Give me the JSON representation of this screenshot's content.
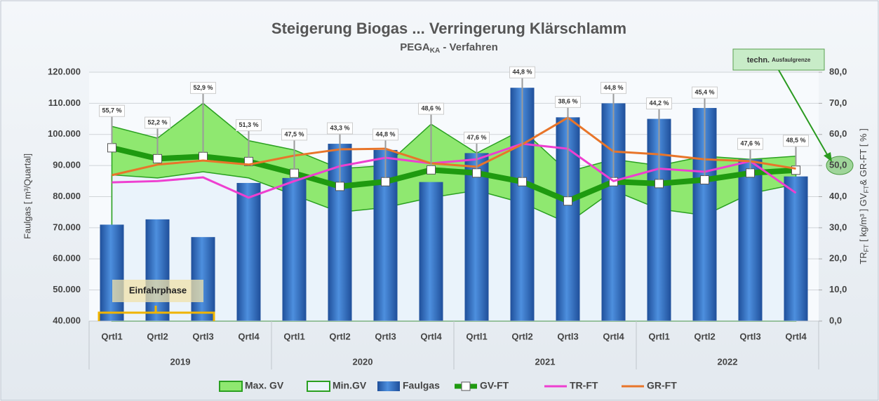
{
  "chart_data": {
    "type": "combo",
    "title": "Steigerung Biogas ... Verringerung Klärschlamm",
    "subtitle": [
      "PEGA",
      "KA",
      " - Verfahren"
    ],
    "ylabel": "Faulgas [ m³/Quartal]",
    "y2label": [
      "TR",
      "FT",
      " [ kg/m³ ] GV",
      "FT",
      "& GR-FT [ % ]"
    ],
    "categories": [
      "Qrtl1",
      "Qrtl2",
      "Qrtl3",
      "Qrtl4",
      "Qrtl1",
      "Qrtl2",
      "Qrtl3",
      "Qrtl4",
      "Qrtl1",
      "Qrtl2",
      "Qrtl3",
      "Qrtl4",
      "Qrtl1",
      "Qrtl2",
      "Qrtl3",
      "Qrtl4"
    ],
    "years": [
      "2019",
      "2020",
      "2021",
      "2022"
    ],
    "ylim": [
      40000,
      120000
    ],
    "yticks": [
      {
        "value": 40000,
        "label": "40.000"
      },
      {
        "value": 50000,
        "label": "50.000"
      },
      {
        "value": 60000,
        "label": "60.000"
      },
      {
        "value": 70000,
        "label": "70.000"
      },
      {
        "value": 80000,
        "label": "80.000"
      },
      {
        "value": 90000,
        "label": "90.000"
      },
      {
        "value": 100000,
        "label": "100.000"
      },
      {
        "value": 110000,
        "label": "110.000"
      },
      {
        "value": 120000,
        "label": "120.000"
      }
    ],
    "y2lim": [
      0,
      80
    ],
    "y2ticks": [
      {
        "value": 0,
        "label": "0,0"
      },
      {
        "value": 10,
        "label": "10,0"
      },
      {
        "value": 20,
        "label": "20,0"
      },
      {
        "value": 30,
        "label": "30,0"
      },
      {
        "value": 40,
        "label": "40,0"
      },
      {
        "value": 50,
        "label": "50,0"
      },
      {
        "value": 60,
        "label": "60,0"
      },
      {
        "value": 70,
        "label": "70,0"
      },
      {
        "value": 80,
        "label": "80,0"
      }
    ],
    "grid": true,
    "series": [
      {
        "name": "Max. GV",
        "type": "area",
        "axis": "y2",
        "color": "#8fe870",
        "values": [
          62.6,
          58.8,
          70,
          58,
          55,
          49,
          50,
          63.3,
          54,
          61.5,
          48,
          52,
          50,
          53,
          52,
          53
        ]
      },
      {
        "name": "Min.GV",
        "type": "area",
        "axis": "y2",
        "color": "#eaf3fb",
        "values": [
          47,
          46,
          48,
          46,
          40.5,
          35,
          36.5,
          39.7,
          42,
          38,
          31.5,
          42,
          36,
          34,
          41,
          44
        ]
      },
      {
        "name": "Faulgas",
        "type": "bar",
        "color": "#3a78c8",
        "values": [
          71000,
          72700,
          67000,
          84400,
          86000,
          97000,
          95000,
          84700,
          94000,
          115000,
          105500,
          110000,
          105000,
          108500,
          92000,
          86500
        ]
      },
      {
        "name": "GV-FT",
        "type": "line",
        "axis": "y2",
        "color": "#1f9a10",
        "values": [
          55.7,
          52.2,
          52.9,
          51.3,
          47.5,
          43.3,
          44.8,
          48.6,
          47.6,
          44.8,
          38.6,
          44.8,
          44.2,
          45.4,
          47.6,
          48.5
        ],
        "value_labels": [
          "55,7 %",
          "52,2 %",
          "52,9 %",
          "51,3 %",
          "47,5 %",
          "43,3 %",
          "44,8 %",
          "48,6 %",
          "47,6 %",
          "44,8 %",
          "38,6 %",
          "44,8 %",
          "44,2 %",
          "45,4 %",
          "47,6 %",
          "48,5 %"
        ]
      },
      {
        "name": "TR-FT",
        "type": "line",
        "axis": "y2",
        "color": "#ee3fd0",
        "values": [
          44.6,
          45,
          46.2,
          39.7,
          45,
          49.8,
          52.5,
          50.7,
          52,
          57,
          55.4,
          45,
          49,
          48,
          51.4,
          41.2
        ]
      },
      {
        "name": "GR-FT",
        "type": "line",
        "axis": "y2",
        "color": "#e8752a",
        "values": [
          46.9,
          50.3,
          51.6,
          50.3,
          53.2,
          55.2,
          55.4,
          50.7,
          49.6,
          56.8,
          65.4,
          54.5,
          53.6,
          52,
          51.4,
          49
        ]
      }
    ],
    "annotations": [
      "Einfahrphase",
      "techn.",
      "Ausfaulgrenze"
    ]
  }
}
